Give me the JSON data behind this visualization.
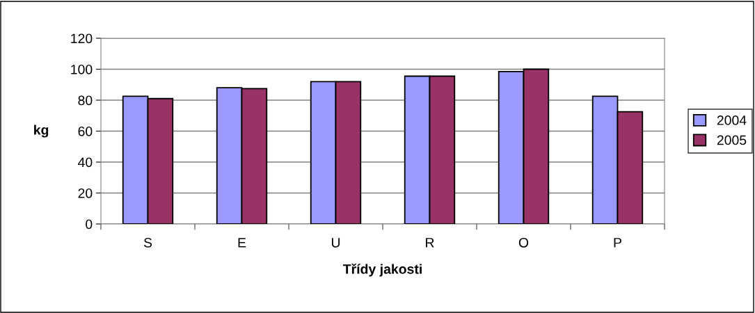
{
  "chart_data": {
    "type": "bar",
    "xlabel": "Třídy jakosti",
    "ylabel": "kg",
    "categories": [
      "S",
      "E",
      "U",
      "R",
      "O",
      "P"
    ],
    "series": [
      {
        "name": "2004",
        "color": "#9999ff",
        "values": [
          82.5,
          88,
          92,
          95.5,
          98.5,
          82.5
        ]
      },
      {
        "name": "2005",
        "color": "#993366",
        "values": [
          81,
          87.5,
          92,
          95.5,
          100,
          72.5
        ]
      }
    ],
    "ylim": [
      0,
      120
    ],
    "yticks": [
      0,
      20,
      40,
      60,
      80,
      100,
      120
    ],
    "grid": "y",
    "legend": "right"
  }
}
